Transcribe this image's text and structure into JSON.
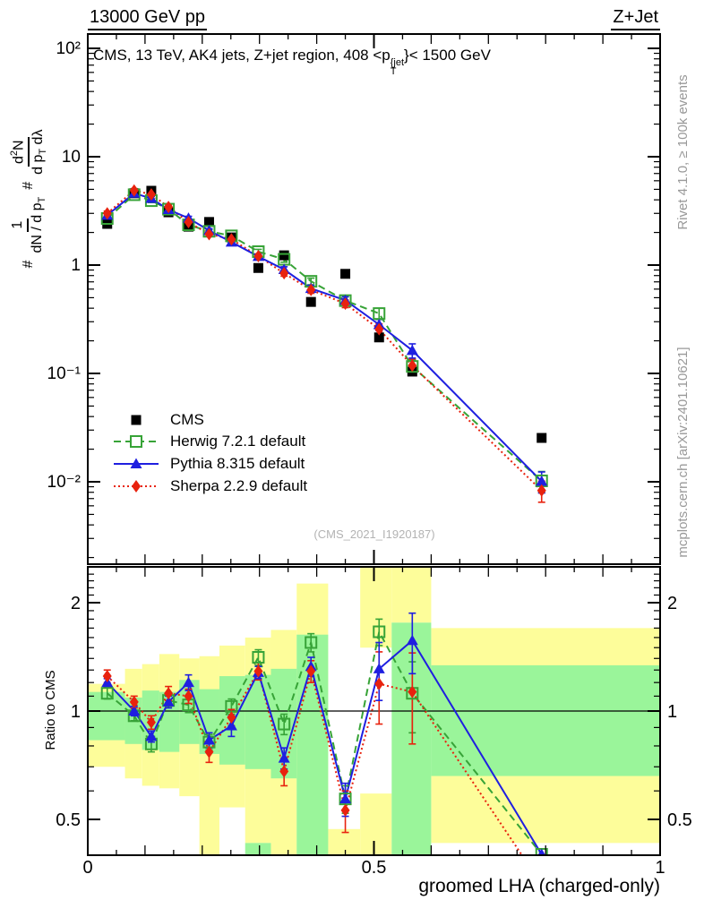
{
  "header": {
    "left_title": "13000 GeV pp",
    "right_title": "Z+Jet"
  },
  "inplot_title": {
    "pre": "CMS, 13 TeV, AK4 jets, Z+jet region, 408 <p",
    "sup": "{jet",
    "sub": "T",
    "post": "}< 1500 GeV"
  },
  "ylabel_formula": {
    "hash1": "#",
    "frac1_num": "1",
    "frac1_den": {
      "pre": "dN / d p",
      "sub": "T"
    },
    "hash2": "#",
    "frac2_num": {
      "pre": "d",
      "sup": "2",
      "post": "N"
    },
    "frac2_den": {
      "pre": "d p",
      "sub": "T",
      "post": " dλ"
    }
  },
  "watermark": "(CMS_2021_I1920187)",
  "ratio_ylabel": "Ratio to CMS",
  "xlabel": "groomed LHA (charged-only)",
  "side_notes": {
    "top": "Rivet 4.1.0, ≥ 100k events",
    "bottom": "mcplots.cern.ch [arXiv:2401.10621]"
  },
  "legend": {
    "entries": [
      {
        "label": "CMS",
        "series": "cms"
      },
      {
        "label": "Herwig 7.2.1 default",
        "series": "herwig"
      },
      {
        "label": "Pythia 8.315 default",
        "series": "pythia"
      },
      {
        "label": "Sherpa 2.2.9 default",
        "series": "sherpa"
      }
    ]
  },
  "colors": {
    "cms": "#000000",
    "herwig": "#37a337",
    "pythia": "#1f1fe0",
    "sherpa": "#e8220e",
    "band_yellow": "#fdfd9a",
    "band_green": "#9af59a",
    "note_gray": "#999999",
    "watermark_gray": "#b3b3b3"
  },
  "chart_data": {
    "type": "line",
    "title": "CMS, 13 TeV, AK4 jets, Z+jet region, 408 <p_T^{jet}< 1500 GeV",
    "xlabel": "groomed LHA (charged-only)",
    "ylabel": "# 1/(dN/dp_T) # d2N/(dp_T dλ)",
    "ratio_ylabel": "Ratio to CMS",
    "x_range": [
      0,
      1
    ],
    "main_y_log_range": [
      0.0017,
      135
    ],
    "ratio_y_log_range": [
      0.398,
      2.51
    ],
    "legend_position": "middle-left",
    "grid": false,
    "x": [
      0.034,
      0.081,
      0.111,
      0.141,
      0.176,
      0.212,
      0.251,
      0.298,
      0.343,
      0.39,
      0.45,
      0.509,
      0.567,
      0.793
    ],
    "bin_edges": [
      0.0,
      0.065,
      0.095,
      0.125,
      0.16,
      0.195,
      0.23,
      0.275,
      0.32,
      0.365,
      0.42,
      0.476,
      0.531,
      0.6,
      1.0
    ],
    "series": [
      {
        "name": "CMS",
        "marker": "filled-square",
        "line": "none",
        "color_key": "cms",
        "values": [
          2.4,
          4.6,
          4.85,
          3.07,
          2.26,
          2.5,
          1.8,
          0.94,
          1.23,
          0.457,
          0.83,
          0.215,
          0.104,
          0.0254
        ]
      },
      {
        "name": "Herwig 7.2.1 default",
        "marker": "open-square",
        "line": "dashed",
        "color_key": "herwig",
        "values": [
          2.69,
          4.46,
          3.93,
          3.28,
          2.35,
          2.05,
          1.86,
          1.33,
          1.13,
          0.708,
          0.47,
          0.357,
          0.116,
          0.0102
        ],
        "ratio": [
          1.12,
          0.97,
          0.81,
          1.07,
          1.04,
          0.82,
          1.03,
          1.41,
          0.92,
          1.55,
          0.57,
          1.66,
          1.12,
          0.4
        ],
        "ratio_err": [
          0.04,
          0.03,
          0.04,
          0.04,
          0.05,
          0.04,
          0.05,
          0.07,
          0.06,
          0.09,
          0.05,
          0.14,
          0.25,
          0
        ]
      },
      {
        "name": "Pythia 8.315 default",
        "marker": "filled-triangle",
        "line": "solid",
        "color_key": "pythia",
        "values": [
          2.88,
          4.6,
          4.12,
          3.25,
          2.71,
          2.08,
          1.63,
          1.2,
          0.91,
          0.608,
          0.473,
          0.282,
          0.163,
          0.0101
        ],
        "ratio": [
          1.2,
          1.0,
          0.85,
          1.06,
          1.2,
          0.83,
          0.91,
          1.28,
          0.74,
          1.33,
          0.57,
          1.31,
          1.57,
          0.4
        ],
        "ratio_err": [
          0.03,
          0.03,
          0.03,
          0.04,
          0.06,
          0.04,
          0.06,
          0.05,
          0.05,
          0.08,
          0.06,
          0.24,
          0.3,
          0
        ]
      },
      {
        "name": "Sherpa 2.2.9 default",
        "marker": "filled-diamond",
        "line": "dotted",
        "color_key": "sherpa",
        "values": [
          3.0,
          4.88,
          4.49,
          3.44,
          2.49,
          1.93,
          1.73,
          1.21,
          0.84,
          0.59,
          0.44,
          0.256,
          0.118,
          0.0083
        ],
        "ratio": [
          1.25,
          1.06,
          0.93,
          1.12,
          1.1,
          0.77,
          0.96,
          1.29,
          0.68,
          1.29,
          0.53,
          1.19,
          1.13,
          0.33
        ],
        "ratio_err": [
          0.05,
          0.04,
          0.04,
          0.05,
          0.05,
          0.05,
          0.05,
          0.07,
          0.06,
          0.09,
          0.07,
          0.27,
          0.32,
          0
        ]
      }
    ],
    "main_err_rel": [
      0.05,
      0.04,
      0.04,
      0.04,
      0.04,
      0.04,
      0.05,
      0.05,
      0.06,
      0.07,
      0.08,
      0.12,
      0.15,
      0.22
    ],
    "ratio_bands": {
      "yellow": [
        [
          0.0,
          0.065,
          0.7,
          1.19
        ],
        [
          0.065,
          0.095,
          0.65,
          1.31
        ],
        [
          0.095,
          0.125,
          0.62,
          1.35
        ],
        [
          0.125,
          0.16,
          0.61,
          1.44
        ],
        [
          0.16,
          0.195,
          0.58,
          1.4
        ],
        [
          0.195,
          0.23,
          0.398,
          1.42
        ],
        [
          0.23,
          0.275,
          0.54,
          1.52
        ],
        [
          0.275,
          0.32,
          0.43,
          1.6
        ],
        [
          0.32,
          0.365,
          0.398,
          1.68
        ],
        [
          0.365,
          0.42,
          0.398,
          2.26
        ],
        [
          0.42,
          0.476,
          0.398,
          0.47
        ],
        [
          0.476,
          0.531,
          1.5,
          2.51
        ],
        [
          0.476,
          0.531,
          0.398,
          0.59
        ],
        [
          0.531,
          0.6,
          1.76,
          2.51
        ],
        [
          0.6,
          1.0,
          0.43,
          1.7
        ]
      ],
      "green": [
        [
          0.0,
          0.065,
          0.83,
          1.13
        ],
        [
          0.065,
          0.095,
          0.81,
          1.09
        ],
        [
          0.095,
          0.125,
          0.78,
          1.14
        ],
        [
          0.125,
          0.16,
          0.77,
          1.13
        ],
        [
          0.16,
          0.195,
          0.81,
          1.22
        ],
        [
          0.195,
          0.23,
          0.76,
          1.15
        ],
        [
          0.23,
          0.275,
          0.71,
          1.25
        ],
        [
          0.275,
          0.32,
          0.69,
          1.26
        ],
        [
          0.275,
          0.32,
          0.398,
          0.43
        ],
        [
          0.32,
          0.365,
          0.65,
          1.31
        ],
        [
          0.365,
          0.42,
          0.398,
          1.63
        ],
        [
          0.531,
          0.6,
          0.398,
          1.76
        ],
        [
          0.6,
          1.0,
          0.66,
          1.34
        ]
      ]
    },
    "main_axis_ticks": [
      {
        "v": 100,
        "label": "10²"
      },
      {
        "v": 10,
        "label": "10"
      },
      {
        "v": 1,
        "label": "1"
      },
      {
        "v": 0.1,
        "label": "10⁻¹"
      },
      {
        "v": 0.01,
        "label": "10⁻²"
      }
    ],
    "ratio_axis_ticks": [
      {
        "v": 2,
        "label": "2"
      },
      {
        "v": 1,
        "label": "1"
      },
      {
        "v": 0.5,
        "label": "0.5"
      }
    ],
    "x_axis_ticks": [
      {
        "v": 0,
        "label": "0"
      },
      {
        "v": 0.5,
        "label": "0.5"
      },
      {
        "v": 1,
        "label": "1"
      }
    ]
  }
}
